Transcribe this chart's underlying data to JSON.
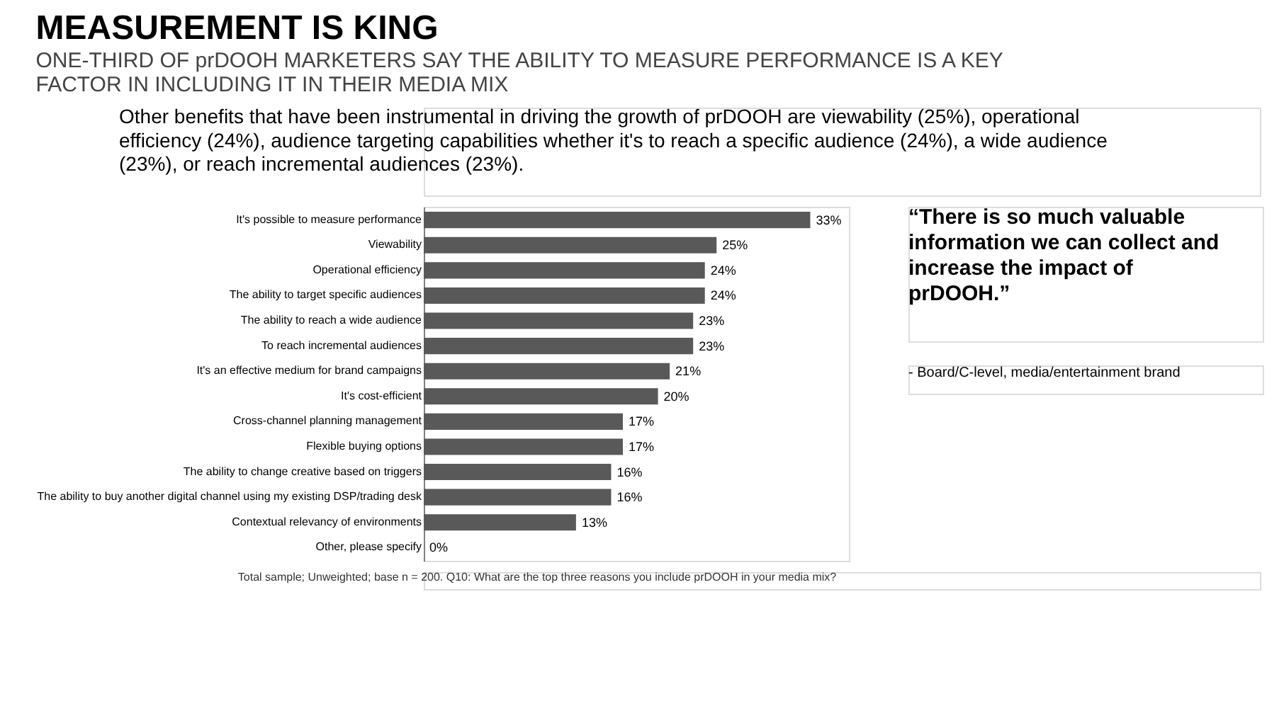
{
  "chart_data": {
    "type": "bar",
    "orientation": "horizontal",
    "title": "MEASUREMENT IS KING",
    "subtitle": "ONE-THIRD OF prDOOH MARKETERS SAY THE ABILITY TO MEASURE PERFORMANCE IS A KEY FACTOR IN INCLUDING IT IN THEIR MEDIA MIX",
    "categories": [
      "It's possible to measure performance",
      "Viewability",
      "Operational efficiency",
      "The ability to target specific audiences",
      "The ability to reach a wide audience",
      "To reach incremental audiences",
      "It's an effective medium for brand campaigns",
      "It's cost-efficient",
      "Cross-channel planning management",
      "Flexible buying options",
      "The ability to change creative based on triggers",
      "The ability to buy another digital channel using my existing DSP/trading desk",
      "Contextual relevancy of environments",
      "Other, please specify"
    ],
    "values": [
      33,
      25,
      24,
      24,
      23,
      23,
      21,
      20,
      17,
      17,
      16,
      16,
      13,
      0
    ],
    "value_labels": [
      "33%",
      "25%",
      "24%",
      "24%",
      "23%",
      "23%",
      "21%",
      "20%",
      "17%",
      "17%",
      "16%",
      "16%",
      "13%",
      "0%"
    ],
    "color": "#595959",
    "annotations": [
      "Other benefits that have been instrumental in driving the growth of prDOOH are viewability (25%), operational efficiency (24%), audience targeting capabilities whether it's to reach a specific audience (24%), a wide audience (23%), or reach incremental audiences (23%).",
      "“There is so much valuable information we can collect and increase the impact of prDOOH.”",
      "- Board/C-level, media/entertainment brand",
      "Total sample; Unweighted; base n = 200. Q10: What are the top three reasons you include prDOOH in your media mix?"
    ],
    "grid": false
  }
}
